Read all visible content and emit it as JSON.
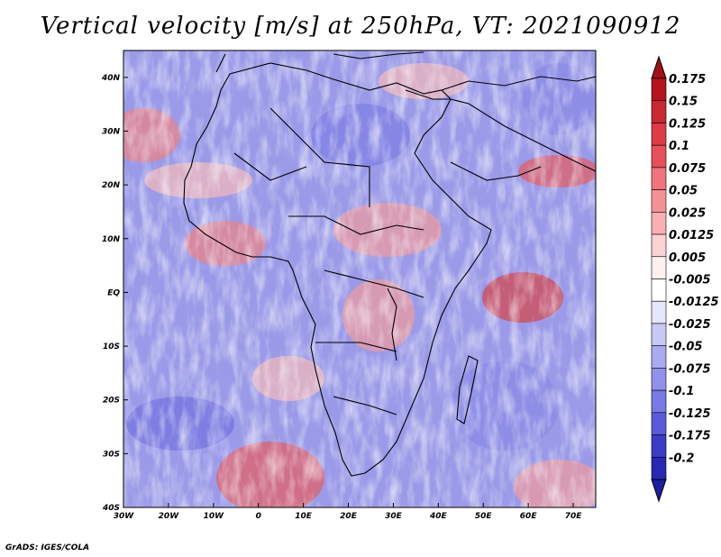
{
  "title": "Vertical velocity [m/s] at 250hPa, VT: 2021090912",
  "footer": "GrADS: IGES/COLA",
  "map": {
    "lon_range": [
      -30,
      75
    ],
    "lat_range": [
      -40,
      45
    ],
    "lon_ticks": [
      {
        "value": -30,
        "label": "30W"
      },
      {
        "value": -20,
        "label": "20W"
      },
      {
        "value": -10,
        "label": "10W"
      },
      {
        "value": 0,
        "label": "0"
      },
      {
        "value": 10,
        "label": "10E"
      },
      {
        "value": 20,
        "label": "20E"
      },
      {
        "value": 30,
        "label": "30E"
      },
      {
        "value": 40,
        "label": "40E"
      },
      {
        "value": 50,
        "label": "50E"
      },
      {
        "value": 60,
        "label": "60E"
      },
      {
        "value": 70,
        "label": "70E"
      }
    ],
    "lat_ticks": [
      {
        "value": 40,
        "label": "40N"
      },
      {
        "value": 30,
        "label": "30N"
      },
      {
        "value": 20,
        "label": "20N"
      },
      {
        "value": 10,
        "label": "10N"
      },
      {
        "value": 0,
        "label": "EQ"
      },
      {
        "value": -10,
        "label": "10S"
      },
      {
        "value": -20,
        "label": "20S"
      },
      {
        "value": -30,
        "label": "30S"
      },
      {
        "value": -40,
        "label": "40S"
      }
    ]
  },
  "colorbar": {
    "levels": [
      {
        "label": "0.175",
        "color": "#b4141e"
      },
      {
        "label": "0.15",
        "color": "#c82832"
      },
      {
        "label": "0.125",
        "color": "#dc3c46"
      },
      {
        "label": "0.1",
        "color": "#e6505a"
      },
      {
        "label": "0.075",
        "color": "#f0737d"
      },
      {
        "label": "0.05",
        "color": "#f59196"
      },
      {
        "label": "0.025",
        "color": "#faafb4"
      },
      {
        "label": "0.0125",
        "color": "#fcd2d4"
      },
      {
        "label": "0.005",
        "color": "#fff0f0"
      },
      {
        "label": "-0.005",
        "color": "#ffffff"
      },
      {
        "label": "-0.0125",
        "color": "#e6e6fa"
      },
      {
        "label": "-0.025",
        "color": "#c8c8f5"
      },
      {
        "label": "-0.05",
        "color": "#aaaaf0"
      },
      {
        "label": "-0.075",
        "color": "#9191eb"
      },
      {
        "label": "-0.1",
        "color": "#7878e6"
      },
      {
        "label": "-0.125",
        "color": "#5a5adc"
      },
      {
        "label": "-0.175",
        "color": "#3c3cc8"
      },
      {
        "label": "-0.2",
        "color": "#2828b4"
      }
    ],
    "top_color": "#a01018",
    "bottom_color": "#1e1ea0"
  }
}
